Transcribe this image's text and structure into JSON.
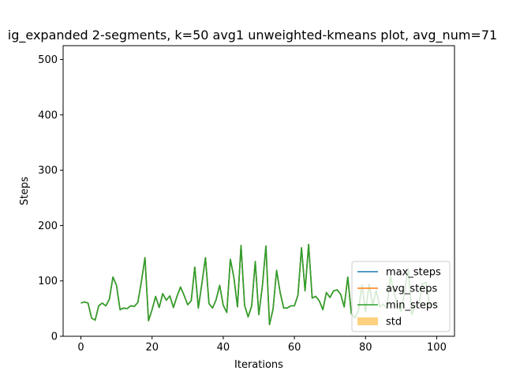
{
  "chart_data": {
    "type": "line",
    "title": "ig_expanded 2-segments, k=50 avg1 unweighted-kmeans plot, avg_num=71",
    "xlabel": "Iterations",
    "ylabel": "Steps",
    "xlim": [
      -5,
      105
    ],
    "ylim": [
      0,
      525
    ],
    "xticks": [
      0,
      20,
      40,
      60,
      80,
      100
    ],
    "yticks": [
      0,
      100,
      200,
      300,
      400,
      500
    ],
    "legend_position": "lower-right",
    "grid": false,
    "x": [
      0,
      1,
      2,
      3,
      4,
      5,
      6,
      7,
      8,
      9,
      10,
      11,
      12,
      13,
      14,
      15,
      16,
      17,
      18,
      19,
      20,
      21,
      22,
      23,
      24,
      25,
      26,
      27,
      28,
      29,
      30,
      31,
      32,
      33,
      34,
      35,
      36,
      37,
      38,
      39,
      40,
      41,
      42,
      43,
      44,
      45,
      46,
      47,
      48,
      49,
      50,
      51,
      52,
      53,
      54,
      55,
      56,
      57,
      58,
      59,
      60,
      61,
      62,
      63,
      64,
      65,
      66,
      67,
      68,
      69,
      70,
      71,
      72,
      73,
      74,
      75,
      76,
      77,
      78,
      79,
      80,
      81,
      82,
      83,
      84,
      85,
      86,
      87,
      88,
      89,
      90,
      91,
      92,
      93,
      94,
      95,
      96,
      97,
      98,
      99,
      100
    ],
    "series": [
      {
        "name": "max_steps",
        "color": "#1f77b4",
        "values": [
          60,
          62,
          60,
          33,
          29,
          55,
          60,
          55,
          67,
          107,
          92,
          48,
          51,
          50,
          55,
          54,
          61,
          99,
          142,
          28,
          48,
          72,
          52,
          77,
          65,
          73,
          52,
          72,
          89,
          74,
          57,
          64,
          125,
          51,
          95,
          142,
          59,
          51,
          66,
          92,
          56,
          43,
          139,
          106,
          53,
          164,
          56,
          35,
          55,
          135,
          39,
          91,
          163,
          21,
          49,
          119,
          79,
          51,
          51,
          55,
          55,
          74,
          160,
          82,
          166,
          69,
          72,
          64,
          48,
          79,
          70,
          82,
          84,
          76,
          53,
          107,
          41,
          33,
          46,
          93,
          44,
          94,
          56,
          83,
          53,
          58,
          50,
          109,
          79,
          59,
          45,
          82,
          122,
          39,
          56,
          59,
          95,
          97,
          56,
          58,
          58
        ]
      },
      {
        "name": "avg_steps",
        "color": "#ff7f0e",
        "values": [
          60,
          62,
          60,
          33,
          29,
          55,
          60,
          55,
          67,
          107,
          92,
          48,
          51,
          50,
          55,
          54,
          61,
          99,
          142,
          28,
          48,
          72,
          52,
          77,
          65,
          73,
          52,
          72,
          89,
          74,
          57,
          64,
          125,
          51,
          95,
          142,
          59,
          51,
          66,
          92,
          56,
          43,
          139,
          106,
          53,
          164,
          56,
          35,
          55,
          135,
          39,
          91,
          163,
          21,
          49,
          119,
          79,
          51,
          51,
          55,
          55,
          74,
          160,
          82,
          166,
          69,
          72,
          64,
          48,
          79,
          70,
          82,
          84,
          76,
          53,
          107,
          41,
          33,
          46,
          93,
          44,
          94,
          56,
          83,
          53,
          58,
          50,
          109,
          79,
          59,
          45,
          82,
          122,
          39,
          56,
          59,
          95,
          97,
          56,
          58,
          58
        ]
      },
      {
        "name": "min_steps",
        "color": "#2ca02c",
        "values": [
          60,
          62,
          60,
          33,
          29,
          55,
          60,
          55,
          67,
          107,
          92,
          48,
          51,
          50,
          55,
          54,
          61,
          99,
          142,
          28,
          48,
          72,
          52,
          77,
          65,
          73,
          52,
          72,
          89,
          74,
          57,
          64,
          125,
          51,
          95,
          142,
          59,
          51,
          66,
          92,
          56,
          43,
          139,
          106,
          53,
          164,
          56,
          35,
          55,
          135,
          39,
          91,
          163,
          21,
          49,
          119,
          79,
          51,
          51,
          55,
          55,
          74,
          160,
          82,
          166,
          69,
          72,
          64,
          48,
          79,
          70,
          82,
          84,
          76,
          53,
          107,
          41,
          33,
          46,
          93,
          44,
          94,
          56,
          83,
          53,
          58,
          50,
          109,
          79,
          59,
          45,
          82,
          122,
          39,
          56,
          59,
          95,
          97,
          56,
          58,
          58
        ]
      }
    ],
    "std_band": {
      "name": "std",
      "color": "#fdd17f"
    }
  }
}
